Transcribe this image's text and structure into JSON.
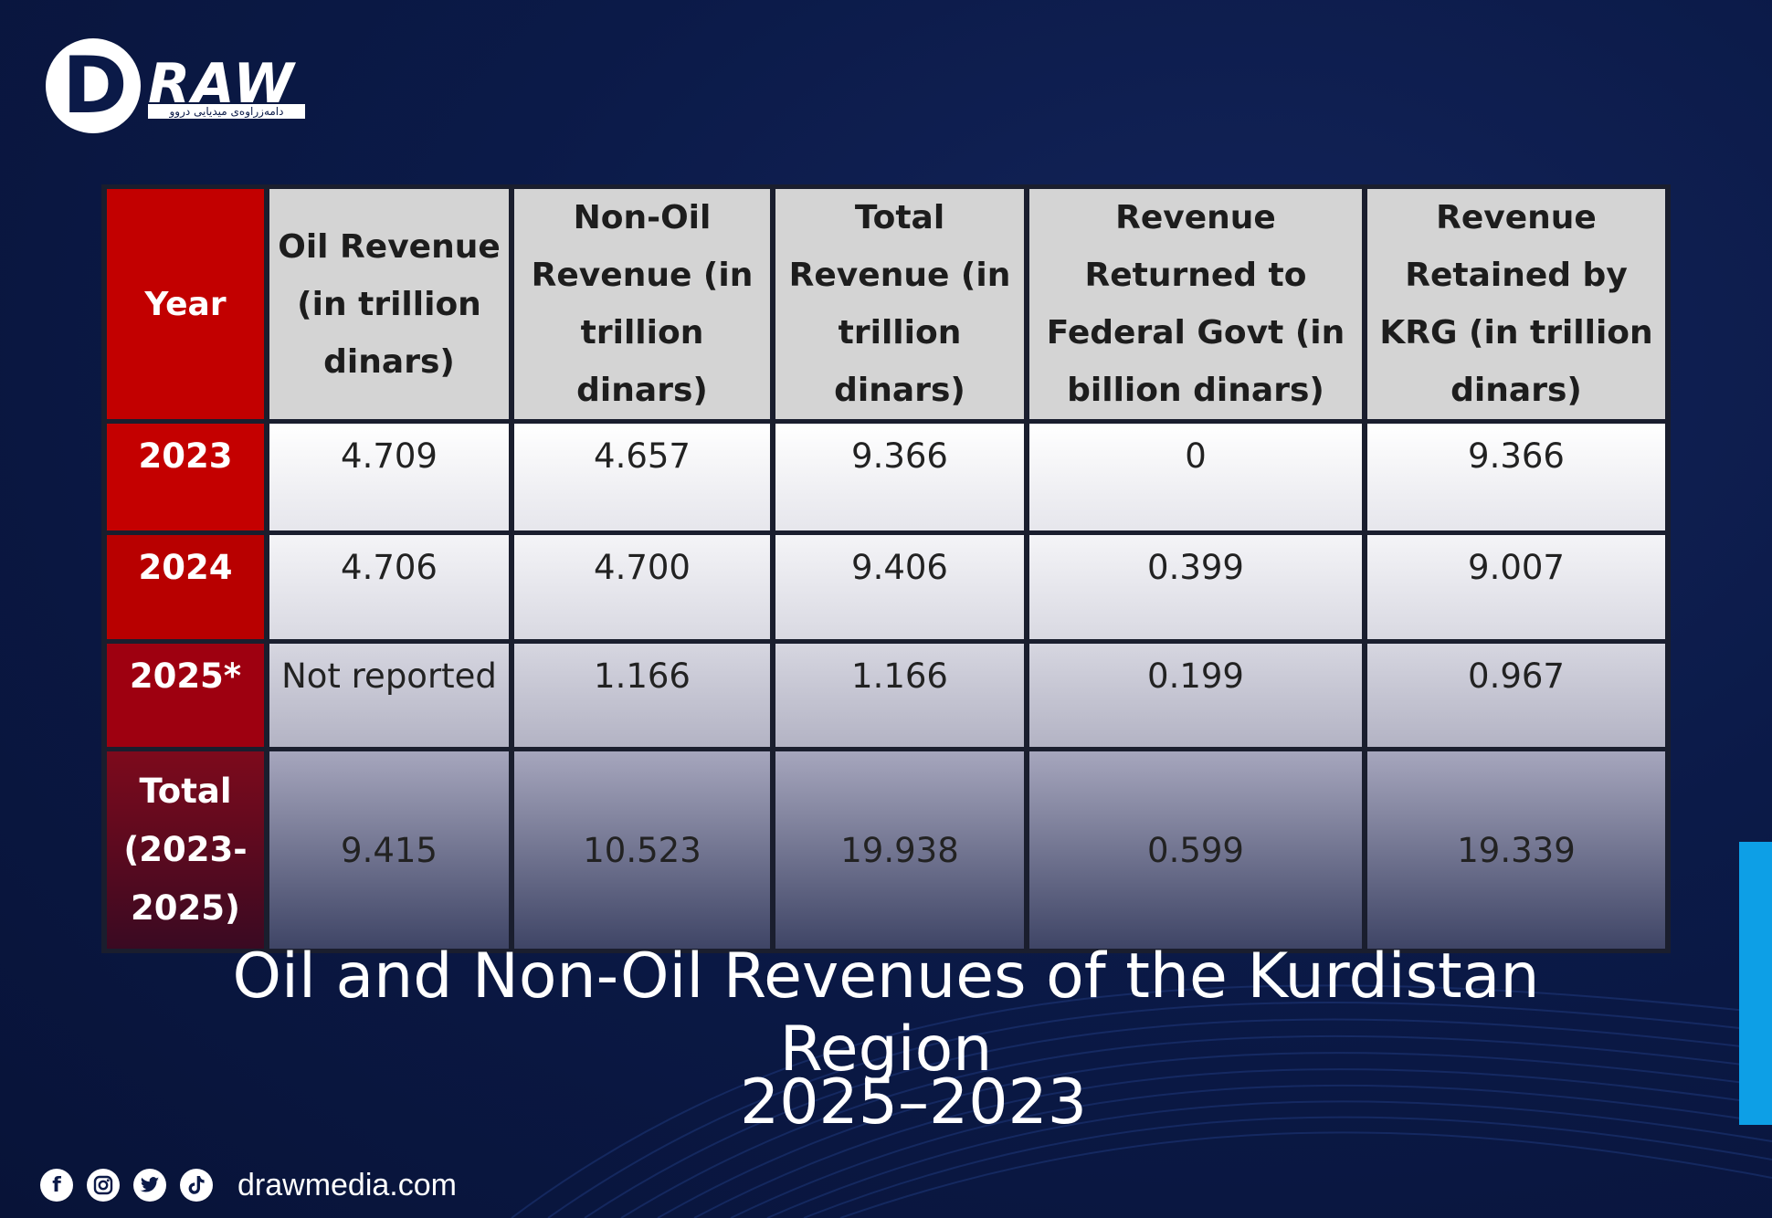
{
  "brand": {
    "logo_letter": "D",
    "logo_word": "RAW",
    "logo_tagline": "دامەزراوەی میدیایی دروو",
    "website": "drawmedia.com"
  },
  "social_icons": [
    "facebook-icon",
    "instagram-icon",
    "twitter-icon",
    "tiktok-icon"
  ],
  "colors": {
    "background": "#0b1a48",
    "year_column": "#c20000",
    "header_cells": "#d4d4d4",
    "accent_bar": "#0d9fe6"
  },
  "title": "Oil and Non-Oil Revenues of the Kurdistan Region",
  "subtitle": "2025–2023",
  "chart_data": {
    "type": "table",
    "columns": [
      "Year",
      "Oil Revenue (in trillion dinars)",
      "Non-Oil Revenue (in trillion dinars)",
      "Total Revenue (in trillion dinars)",
      "Revenue Returned to Federal Govt (in billion dinars)",
      "Revenue Retained by KRG (in trillion dinars)"
    ],
    "rows": [
      [
        "2023",
        "4.709",
        "4.657",
        "9.366",
        "0",
        "9.366"
      ],
      [
        "2024",
        "4.706",
        "4.700",
        "9.406",
        "0.399",
        "9.007"
      ],
      [
        "2025*",
        "Not reported",
        "1.166",
        "1.166",
        "0.199",
        "0.967"
      ],
      [
        "Total (2023-2025)",
        "9.415",
        "10.523",
        "19.938",
        "0.599",
        "19.339"
      ]
    ]
  }
}
